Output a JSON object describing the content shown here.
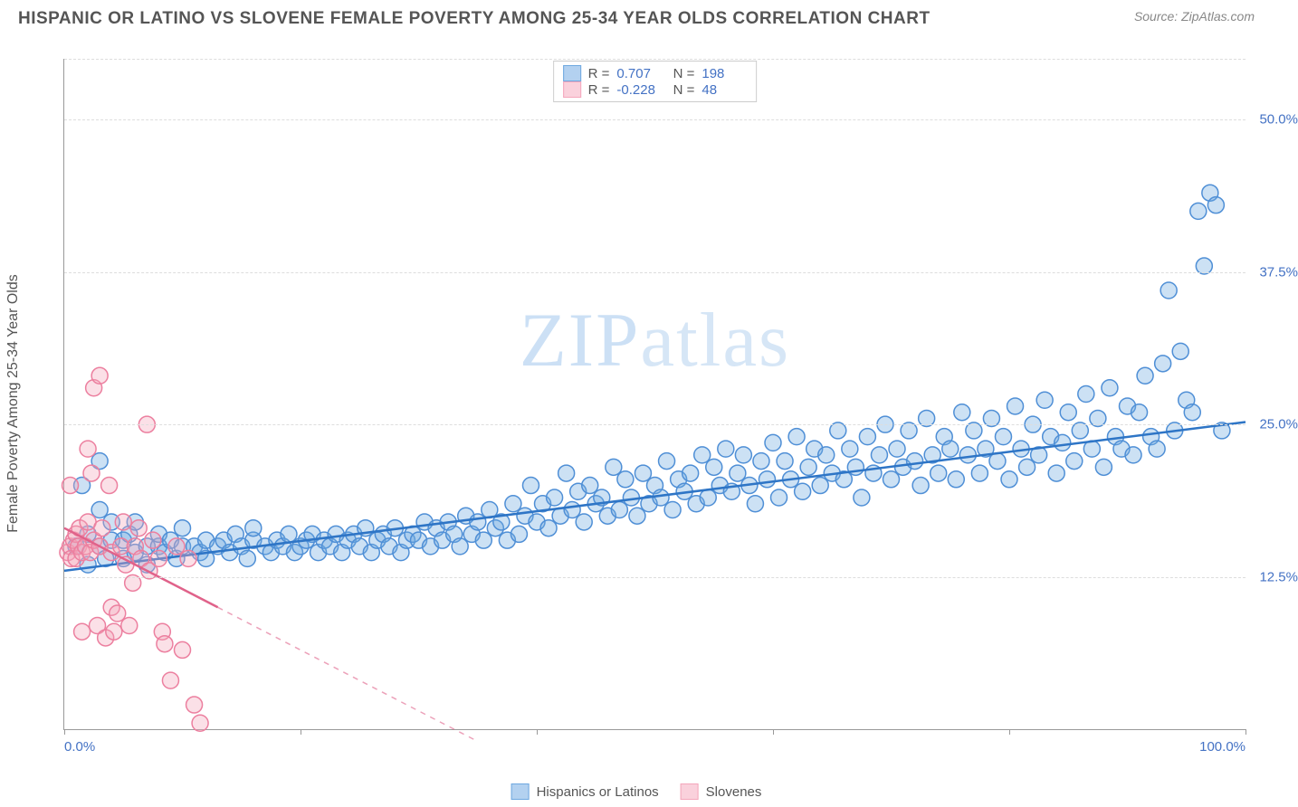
{
  "header": {
    "title": "HISPANIC OR LATINO VS SLOVENE FEMALE POVERTY AMONG 25-34 YEAR OLDS CORRELATION CHART",
    "source": "Source: ZipAtlas.com"
  },
  "chart": {
    "type": "scatter",
    "y_label": "Female Poverty Among 25-34 Year Olds",
    "watermark": "ZIPatlas",
    "background_color": "#ffffff",
    "grid_color": "#dddddd",
    "axis_color": "#999999",
    "axis_label_color": "#555555",
    "tick_label_color": "#4472c4",
    "label_fontsize": 16,
    "tick_fontsize": 15,
    "xlim": [
      0,
      100
    ],
    "ylim": [
      0,
      55
    ],
    "x_ticks": [
      0,
      20,
      40,
      60,
      80,
      100
    ],
    "x_tick_labels": {
      "0": "0.0%",
      "100": "100.0%"
    },
    "y_ticks": [
      12.5,
      25.0,
      37.5,
      50.0
    ],
    "y_tick_labels": {
      "12.5": "12.5%",
      "25.0": "25.0%",
      "37.5": "37.5%",
      "50.0": "50.0%"
    },
    "marker_radius": 9,
    "marker_fill_opacity": 0.35,
    "marker_stroke_width": 1.5,
    "trend_line_width": 2.5,
    "series": [
      {
        "name": "Hispanics or Latinos",
        "color": "#6ea8e0",
        "stroke": "#4f8fd6",
        "line_color": "#2e75c6",
        "R": "0.707",
        "N": "198",
        "trend": {
          "x1": 0,
          "y1": 13.0,
          "x2": 100,
          "y2": 25.2
        },
        "points": [
          [
            1,
            15
          ],
          [
            1.5,
            20
          ],
          [
            2,
            16
          ],
          [
            2,
            13.5
          ],
          [
            3,
            15
          ],
          [
            3,
            18
          ],
          [
            3,
            22
          ],
          [
            3.5,
            14
          ],
          [
            4,
            15.5
          ],
          [
            4,
            17
          ],
          [
            5,
            14
          ],
          [
            5,
            15.5
          ],
          [
            5.5,
            16
          ],
          [
            6,
            14.5
          ],
          [
            6,
            17
          ],
          [
            7,
            15
          ],
          [
            7,
            13.5
          ],
          [
            8,
            15
          ],
          [
            8,
            16
          ],
          [
            8.5,
            14.5
          ],
          [
            9,
            15.5
          ],
          [
            9.5,
            14
          ],
          [
            10,
            15
          ],
          [
            10,
            16.5
          ],
          [
            11,
            15
          ],
          [
            11.5,
            14.5
          ],
          [
            12,
            15.5
          ],
          [
            12,
            14
          ],
          [
            13,
            15
          ],
          [
            13.5,
            15.5
          ],
          [
            14,
            14.5
          ],
          [
            14.5,
            16
          ],
          [
            15,
            15
          ],
          [
            15.5,
            14
          ],
          [
            16,
            15.5
          ],
          [
            16,
            16.5
          ],
          [
            17,
            15
          ],
          [
            17.5,
            14.5
          ],
          [
            18,
            15.5
          ],
          [
            18.5,
            15
          ],
          [
            19,
            16
          ],
          [
            19.5,
            14.5
          ],
          [
            20,
            15
          ],
          [
            20.5,
            15.5
          ],
          [
            21,
            16
          ],
          [
            21.5,
            14.5
          ],
          [
            22,
            15.5
          ],
          [
            22.5,
            15
          ],
          [
            23,
            16
          ],
          [
            23.5,
            14.5
          ],
          [
            24,
            15.5
          ],
          [
            24.5,
            16
          ],
          [
            25,
            15
          ],
          [
            25.5,
            16.5
          ],
          [
            26,
            14.5
          ],
          [
            26.5,
            15.5
          ],
          [
            27,
            16
          ],
          [
            27.5,
            15
          ],
          [
            28,
            16.5
          ],
          [
            28.5,
            14.5
          ],
          [
            29,
            15.5
          ],
          [
            29.5,
            16
          ],
          [
            30,
            15.5
          ],
          [
            30.5,
            17
          ],
          [
            31,
            15
          ],
          [
            31.5,
            16.5
          ],
          [
            32,
            15.5
          ],
          [
            32.5,
            17
          ],
          [
            33,
            16
          ],
          [
            33.5,
            15
          ],
          [
            34,
            17.5
          ],
          [
            34.5,
            16
          ],
          [
            35,
            17
          ],
          [
            35.5,
            15.5
          ],
          [
            36,
            18
          ],
          [
            36.5,
            16.5
          ],
          [
            37,
            17
          ],
          [
            37.5,
            15.5
          ],
          [
            38,
            18.5
          ],
          [
            38.5,
            16
          ],
          [
            39,
            17.5
          ],
          [
            39.5,
            20
          ],
          [
            40,
            17
          ],
          [
            40.5,
            18.5
          ],
          [
            41,
            16.5
          ],
          [
            41.5,
            19
          ],
          [
            42,
            17.5
          ],
          [
            42.5,
            21
          ],
          [
            43,
            18
          ],
          [
            43.5,
            19.5
          ],
          [
            44,
            17
          ],
          [
            44.5,
            20
          ],
          [
            45,
            18.5
          ],
          [
            45.5,
            19
          ],
          [
            46,
            17.5
          ],
          [
            46.5,
            21.5
          ],
          [
            47,
            18
          ],
          [
            47.5,
            20.5
          ],
          [
            48,
            19
          ],
          [
            48.5,
            17.5
          ],
          [
            49,
            21
          ],
          [
            49.5,
            18.5
          ],
          [
            50,
            20
          ],
          [
            50.5,
            19
          ],
          [
            51,
            22
          ],
          [
            51.5,
            18
          ],
          [
            52,
            20.5
          ],
          [
            52.5,
            19.5
          ],
          [
            53,
            21
          ],
          [
            53.5,
            18.5
          ],
          [
            54,
            22.5
          ],
          [
            54.5,
            19
          ],
          [
            55,
            21.5
          ],
          [
            55.5,
            20
          ],
          [
            56,
            23
          ],
          [
            56.5,
            19.5
          ],
          [
            57,
            21
          ],
          [
            57.5,
            22.5
          ],
          [
            58,
            20
          ],
          [
            58.5,
            18.5
          ],
          [
            59,
            22
          ],
          [
            59.5,
            20.5
          ],
          [
            60,
            23.5
          ],
          [
            60.5,
            19
          ],
          [
            61,
            22
          ],
          [
            61.5,
            20.5
          ],
          [
            62,
            24
          ],
          [
            62.5,
            19.5
          ],
          [
            63,
            21.5
          ],
          [
            63.5,
            23
          ],
          [
            64,
            20
          ],
          [
            64.5,
            22.5
          ],
          [
            65,
            21
          ],
          [
            65.5,
            24.5
          ],
          [
            66,
            20.5
          ],
          [
            66.5,
            23
          ],
          [
            67,
            21.5
          ],
          [
            67.5,
            19
          ],
          [
            68,
            24
          ],
          [
            68.5,
            21
          ],
          [
            69,
            22.5
          ],
          [
            69.5,
            25
          ],
          [
            70,
            20.5
          ],
          [
            70.5,
            23
          ],
          [
            71,
            21.5
          ],
          [
            71.5,
            24.5
          ],
          [
            72,
            22
          ],
          [
            72.5,
            20
          ],
          [
            73,
            25.5
          ],
          [
            73.5,
            22.5
          ],
          [
            74,
            21
          ],
          [
            74.5,
            24
          ],
          [
            75,
            23
          ],
          [
            75.5,
            20.5
          ],
          [
            76,
            26
          ],
          [
            76.5,
            22.5
          ],
          [
            77,
            24.5
          ],
          [
            77.5,
            21
          ],
          [
            78,
            23
          ],
          [
            78.5,
            25.5
          ],
          [
            79,
            22
          ],
          [
            79.5,
            24
          ],
          [
            80,
            20.5
          ],
          [
            80.5,
            26.5
          ],
          [
            81,
            23
          ],
          [
            81.5,
            21.5
          ],
          [
            82,
            25
          ],
          [
            82.5,
            22.5
          ],
          [
            83,
            27
          ],
          [
            83.5,
            24
          ],
          [
            84,
            21
          ],
          [
            84.5,
            23.5
          ],
          [
            85,
            26
          ],
          [
            85.5,
            22
          ],
          [
            86,
            24.5
          ],
          [
            86.5,
            27.5
          ],
          [
            87,
            23
          ],
          [
            87.5,
            25.5
          ],
          [
            88,
            21.5
          ],
          [
            88.5,
            28
          ],
          [
            89,
            24
          ],
          [
            89.5,
            23
          ],
          [
            90,
            26.5
          ],
          [
            90.5,
            22.5
          ],
          [
            91,
            26
          ],
          [
            91.5,
            29
          ],
          [
            92,
            24
          ],
          [
            92.5,
            23
          ],
          [
            93,
            30
          ],
          [
            93.5,
            36
          ],
          [
            94,
            24.5
          ],
          [
            94.5,
            31
          ],
          [
            95,
            27
          ],
          [
            95.5,
            26
          ],
          [
            96,
            42.5
          ],
          [
            96.5,
            38
          ],
          [
            97,
            44
          ],
          [
            97.5,
            43
          ],
          [
            98,
            24.5
          ]
        ]
      },
      {
        "name": "Slovenes",
        "color": "#f4a6bb",
        "stroke": "#ec7f9f",
        "line_color": "#e0628a",
        "R": "-0.228",
        "N": "48",
        "trend": {
          "x1": 0,
          "y1": 16.5,
          "x2": 13,
          "y2": 10.0
        },
        "trend_ext": {
          "x1": 13,
          "y1": 10.0,
          "x2": 35,
          "y2": -1.0
        },
        "points": [
          [
            0.3,
            14.5
          ],
          [
            0.5,
            15
          ],
          [
            0.5,
            20
          ],
          [
            0.6,
            14
          ],
          [
            0.8,
            15.5
          ],
          [
            1,
            16
          ],
          [
            1,
            14
          ],
          [
            1.2,
            15
          ],
          [
            1.3,
            16.5
          ],
          [
            1.5,
            14.5
          ],
          [
            1.5,
            8
          ],
          [
            1.8,
            15
          ],
          [
            2,
            23
          ],
          [
            2,
            17
          ],
          [
            2.2,
            14.5
          ],
          [
            2.3,
            21
          ],
          [
            2.5,
            28
          ],
          [
            2.5,
            15.5
          ],
          [
            2.8,
            8.5
          ],
          [
            3,
            29
          ],
          [
            3,
            15
          ],
          [
            3.2,
            16.5
          ],
          [
            3.5,
            7.5
          ],
          [
            3.8,
            20
          ],
          [
            4,
            14.5
          ],
          [
            4,
            10
          ],
          [
            4.2,
            8
          ],
          [
            4.5,
            9.5
          ],
          [
            4.8,
            15
          ],
          [
            5,
            17
          ],
          [
            5.2,
            13.5
          ],
          [
            5.5,
            8.5
          ],
          [
            5.8,
            12
          ],
          [
            6,
            15
          ],
          [
            6.3,
            16.5
          ],
          [
            6.5,
            14
          ],
          [
            7,
            25
          ],
          [
            7.2,
            13
          ],
          [
            7.5,
            15.5
          ],
          [
            8,
            14
          ],
          [
            8.3,
            8
          ],
          [
            8.5,
            7
          ],
          [
            9,
            4
          ],
          [
            9.5,
            15
          ],
          [
            10,
            6.5
          ],
          [
            10.5,
            14
          ],
          [
            11,
            2
          ],
          [
            11.5,
            0.5
          ]
        ]
      }
    ]
  },
  "legend_bottom": {
    "items": [
      {
        "label": "Hispanics or Latinos",
        "fill": "#b3d1f0",
        "border": "#6ea8e0"
      },
      {
        "label": "Slovenes",
        "fill": "#fad1dc",
        "border": "#f4a6bb"
      }
    ]
  }
}
